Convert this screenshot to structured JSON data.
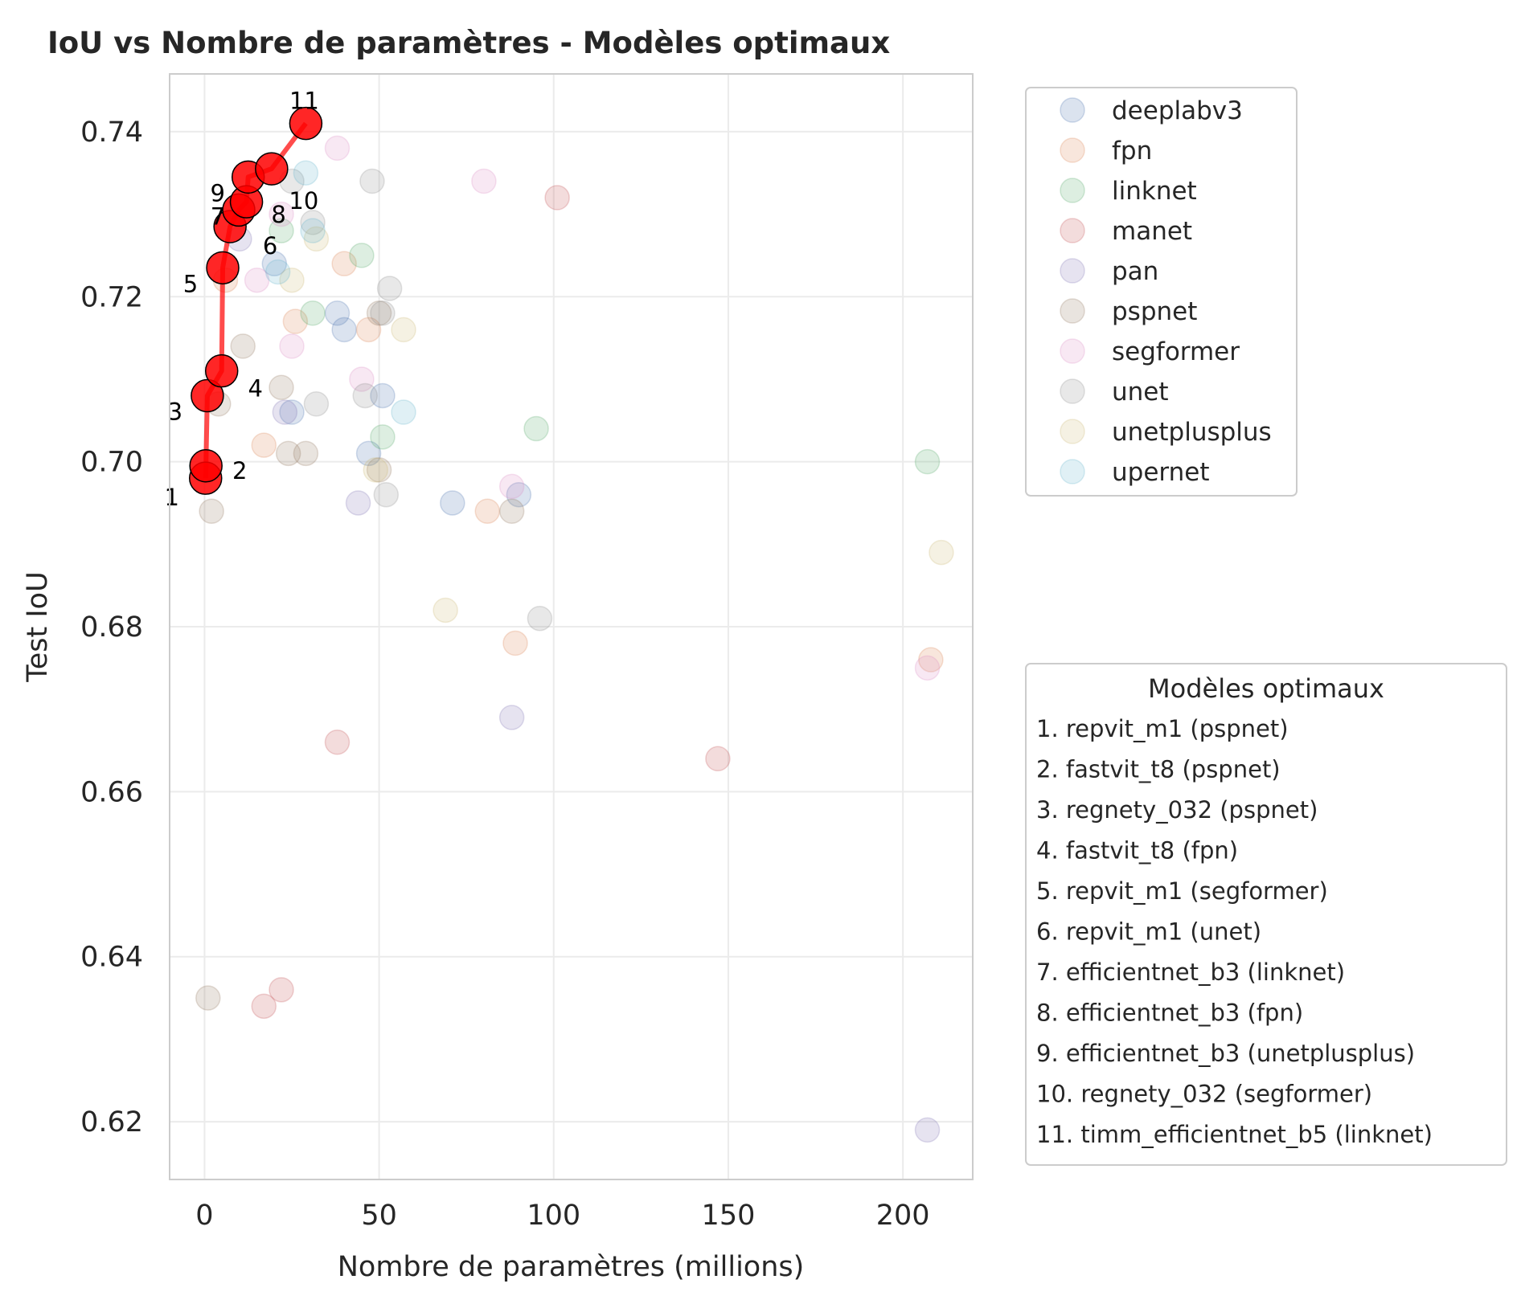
{
  "chart_data": {
    "type": "scatter",
    "title": "IoU vs Nombre de paramètres - Modèles optimaux",
    "xlabel": "Nombre de paramètres (millions)",
    "ylabel": "Test IoU",
    "xlim": [
      -10,
      220
    ],
    "ylim": [
      0.613,
      0.747
    ],
    "xticks": [
      0,
      50,
      100,
      150,
      200
    ],
    "xtick_labels": [
      "0",
      "50",
      "100",
      "150",
      "200"
    ],
    "yticks": [
      0.62,
      0.64,
      0.66,
      0.68,
      0.7,
      0.72,
      0.74
    ],
    "ytick_labels": [
      "0.62",
      "0.64",
      "0.66",
      "0.68",
      "0.70",
      "0.72",
      "0.74"
    ],
    "grid": true,
    "legend_placement": "upper right outside",
    "series": [
      {
        "name": "deeplabv3",
        "color": "#4c72b0",
        "points": [
          [
            25,
            0.706
          ],
          [
            38,
            0.718
          ],
          [
            40,
            0.716
          ],
          [
            47,
            0.701
          ],
          [
            51,
            0.708
          ],
          [
            71,
            0.695
          ],
          [
            90,
            0.696
          ],
          [
            20,
            0.724
          ]
        ]
      },
      {
        "name": "fpn",
        "color": "#dd8452",
        "points": [
          [
            17,
            0.702
          ],
          [
            26,
            0.717
          ],
          [
            40,
            0.724
          ],
          [
            47,
            0.716
          ],
          [
            81,
            0.694
          ],
          [
            89,
            0.678
          ],
          [
            208,
            0.676
          ],
          [
            6,
            0.722
          ]
        ]
      },
      {
        "name": "linknet",
        "color": "#55a868",
        "points": [
          [
            31,
            0.718
          ],
          [
            45,
            0.725
          ],
          [
            51,
            0.703
          ],
          [
            95,
            0.704
          ],
          [
            207,
            0.7
          ],
          [
            22,
            0.728
          ]
        ]
      },
      {
        "name": "manet",
        "color": "#c44e52",
        "points": [
          [
            101,
            0.732
          ],
          [
            38,
            0.666
          ],
          [
            147,
            0.664
          ],
          [
            17,
            0.634
          ],
          [
            22,
            0.636
          ]
        ]
      },
      {
        "name": "pan",
        "color": "#8172b3",
        "points": [
          [
            23,
            0.706
          ],
          [
            44,
            0.695
          ],
          [
            88,
            0.669
          ],
          [
            207,
            0.619
          ],
          [
            10,
            0.727
          ]
        ]
      },
      {
        "name": "pspnet",
        "color": "#937860",
        "points": [
          [
            11,
            0.714
          ],
          [
            22,
            0.709
          ],
          [
            24,
            0.701
          ],
          [
            29,
            0.701
          ],
          [
            50,
            0.718
          ],
          [
            50,
            0.699
          ],
          [
            88,
            0.694
          ],
          [
            2,
            0.694
          ],
          [
            4,
            0.707
          ],
          [
            1,
            0.635
          ]
        ]
      },
      {
        "name": "segformer",
        "color": "#da8bc3",
        "points": [
          [
            15,
            0.722
          ],
          [
            25,
            0.714
          ],
          [
            38,
            0.738
          ],
          [
            45,
            0.71
          ],
          [
            80,
            0.734
          ],
          [
            88,
            0.697
          ],
          [
            207,
            0.675
          ],
          [
            22,
            0.73
          ]
        ]
      },
      {
        "name": "unet",
        "color": "#8c8c8c",
        "points": [
          [
            25,
            0.734
          ],
          [
            31,
            0.729
          ],
          [
            32,
            0.707
          ],
          [
            46,
            0.708
          ],
          [
            48,
            0.734
          ],
          [
            51,
            0.718
          ],
          [
            53,
            0.721
          ],
          [
            52,
            0.696
          ],
          [
            96,
            0.681
          ]
        ]
      },
      {
        "name": "unetplusplus",
        "color": "#ccb974",
        "points": [
          [
            25,
            0.722
          ],
          [
            32,
            0.727
          ],
          [
            49,
            0.699
          ],
          [
            57,
            0.716
          ],
          [
            69,
            0.682
          ],
          [
            211,
            0.689
          ]
        ]
      },
      {
        "name": "upernet",
        "color": "#64b5cd",
        "points": [
          [
            21,
            0.723
          ],
          [
            29,
            0.735
          ],
          [
            31,
            0.728
          ],
          [
            57,
            0.706
          ]
        ]
      }
    ],
    "optimal_models": {
      "title": "Modèles optimaux",
      "color": "#ff0000",
      "points": [
        {
          "id": "1",
          "label": "1. repvit_m1 (pspnet)",
          "x": 0.3,
          "y": 0.698
        },
        {
          "id": "2",
          "label": "2. fastvit_t8 (pspnet)",
          "x": 0.4,
          "y": 0.6995
        },
        {
          "id": "3",
          "label": "3. regnety_032 (pspnet)",
          "x": 0.8,
          "y": 0.708
        },
        {
          "id": "4",
          "label": "4. fastvit_t8 (fpn)",
          "x": 4.9,
          "y": 0.711
        },
        {
          "id": "5",
          "label": "5. repvit_m1 (segformer)",
          "x": 5.2,
          "y": 0.7235
        },
        {
          "id": "6",
          "label": "6. repvit_m1 (unet)",
          "x": 7.3,
          "y": 0.7285
        },
        {
          "id": "7",
          "label": "7. efficientnet_b3 (linknet)",
          "x": 9.8,
          "y": 0.7305
        },
        {
          "id": "8",
          "label": "8. efficientnet_b3 (fpn)",
          "x": 12.0,
          "y": 0.7315
        },
        {
          "id": "9",
          "label": "9. efficientnet_b3 (unetplusplus)",
          "x": 12.5,
          "y": 0.7345
        },
        {
          "id": "10",
          "label": "10. regnety_032 (segformer)",
          "x": 19.2,
          "y": 0.7355
        },
        {
          "id": "11",
          "label": "11. timm_efficientnet_b5 (linknet)",
          "x": 29.0,
          "y": 0.741
        }
      ]
    }
  }
}
